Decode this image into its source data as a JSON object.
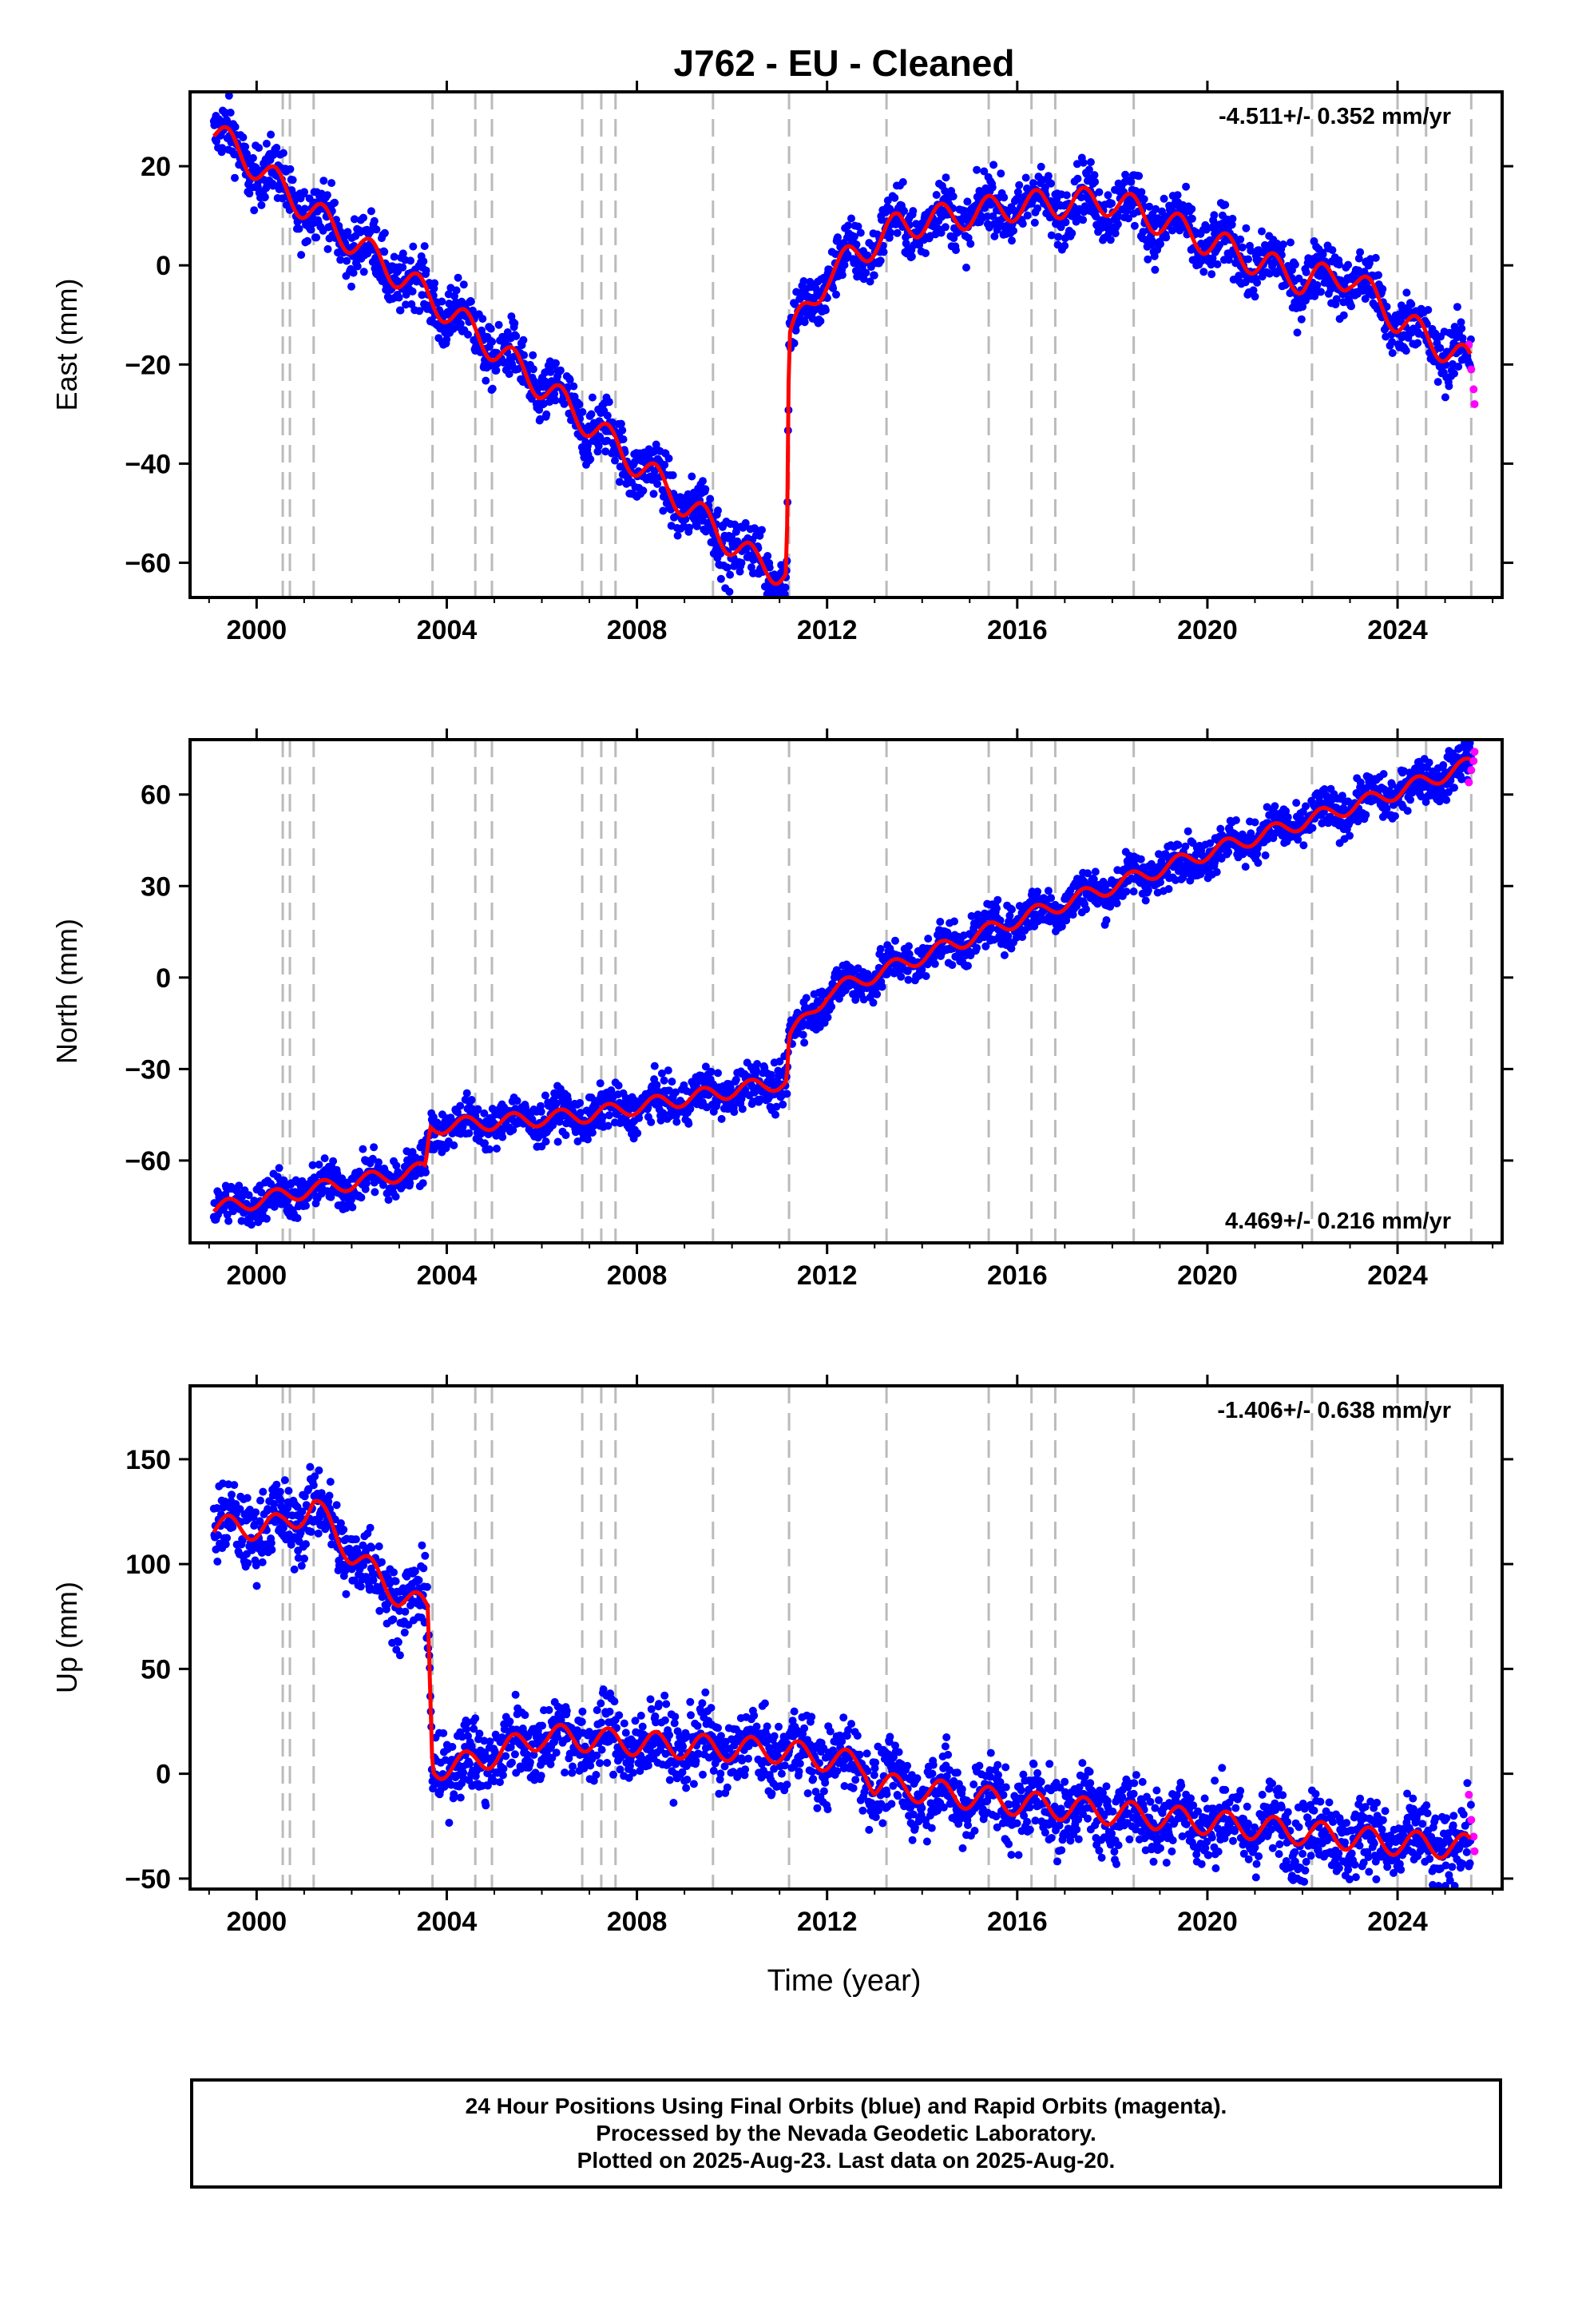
{
  "title": "J762  - EU - Cleaned",
  "xlabel": "Time (year)",
  "footer": [
    "24 Hour Positions Using Final Orbits (blue) and Rapid Orbits (magenta).",
    "Processed by the Nevada Geodetic Laboratory.",
    "Plotted on 2025-Aug-23. Last data on 2025-Aug-20."
  ],
  "colors": {
    "final": "#0000ff",
    "rapid": "#ff00ff",
    "model": "#ff0000",
    "events": "#bbbbbb"
  },
  "event_years": [
    2000.55,
    2000.7,
    2001.2,
    2003.7,
    2004.6,
    2004.95,
    2006.85,
    2007.25,
    2007.55,
    2009.6,
    2011.2,
    2013.25,
    2015.4,
    2016.3,
    2016.8,
    2018.45,
    2022.2,
    2024.0,
    2024.6,
    2025.55
  ],
  "chart_data": [
    {
      "type": "scatter",
      "ylabel": "East (mm)",
      "rate_label": "-4.511+/- 0.352 mm/yr",
      "rate_position": "top-right",
      "xlim": [
        1998.6,
        2026.2
      ],
      "ylim": [
        -67,
        35
      ],
      "xticks": [
        "2000",
        "2004",
        "2008",
        "2012",
        "2016",
        "2020",
        "2024"
      ],
      "yticks": [
        "20",
        "0",
        "−20",
        "−40",
        "−60"
      ],
      "final_orbits_trend": {
        "x": [
          1999.1,
          2001.0,
          2004.0,
          2007.0,
          2009.0,
          2010.5,
          2011.15,
          2011.2,
          2012.0,
          2013.5,
          2016.0,
          2018.0,
          2020.0,
          2022.0,
          2023.0,
          2024.0,
          2025.55
        ],
        "y": [
          27,
          12,
          -9,
          -32,
          -48,
          -60,
          -62,
          -15,
          -2,
          8,
          12,
          13,
          5,
          -3,
          -2,
          -11,
          -20
        ]
      },
      "seasonal_amplitude": 3,
      "scatter_spread": 3,
      "rapid_orbits": {
        "x": [
          2025.5,
          2025.55,
          2025.6,
          2025.62
        ],
        "y": [
          -16,
          -21,
          -25,
          -28
        ]
      }
    },
    {
      "type": "scatter",
      "ylabel": "North (mm)",
      "rate_label": "4.469+/- 0.216 mm/yr",
      "rate_position": "bottom-right",
      "xlim": [
        1998.6,
        2026.2
      ],
      "ylim": [
        -87,
        78
      ],
      "xticks": [
        "2000",
        "2004",
        "2008",
        "2012",
        "2016",
        "2020",
        "2024"
      ],
      "yticks": [
        "60",
        "30",
        "0",
        "−30",
        "−60"
      ],
      "final_orbits_trend": {
        "x": [
          1999.1,
          2001.0,
          2003.55,
          2003.65,
          2007.0,
          2011.15,
          2011.2,
          2012.0,
          2016.0,
          2020.0,
          2024.0,
          2025.55
        ],
        "y": [
          -76,
          -70,
          -63,
          -49,
          -45,
          -34,
          -20,
          -5,
          19,
          41,
          61,
          70
        ]
      },
      "seasonal_amplitude": 2.5,
      "scatter_spread": 3.5,
      "rapid_orbits": {
        "x": [
          2025.5,
          2025.55,
          2025.6,
          2025.62
        ],
        "y": [
          64,
          68,
          71,
          74
        ]
      }
    },
    {
      "type": "scatter",
      "ylabel": "Up (mm)",
      "rate_label": "-1.406+/- 0.638 mm/yr",
      "rate_position": "top-right",
      "xlim": [
        1998.6,
        2026.2
      ],
      "ylim": [
        -55,
        185
      ],
      "xticks": [
        "2000",
        "2004",
        "2008",
        "2012",
        "2016",
        "2020",
        "2024"
      ],
      "yticks": [
        "150",
        "100",
        "50",
        "0",
        "−50"
      ],
      "final_orbits_trend": {
        "x": [
          1999.1,
          2000.5,
          2001.2,
          2002.0,
          2003.0,
          2003.6,
          2003.7,
          2004.5,
          2006.0,
          2009.0,
          2011.0,
          2012.8,
          2013.0,
          2016.0,
          2020.0,
          2024.0,
          2025.55
        ],
        "y": [
          117,
          118,
          128,
          105,
          85,
          78,
          3,
          5,
          18,
          13,
          11,
          4,
          -5,
          -14,
          -23,
          -33,
          -35
        ]
      },
      "seasonal_amplitude": 6,
      "scatter_spread": 9,
      "rapid_orbits": {
        "x": [
          2025.5,
          2025.55,
          2025.6,
          2025.62
        ],
        "y": [
          -10,
          -22,
          -30,
          -37
        ]
      }
    }
  ]
}
